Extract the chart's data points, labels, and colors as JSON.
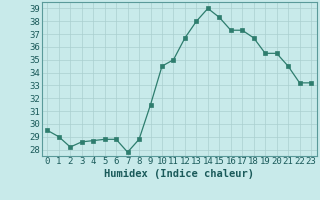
{
  "x": [
    0,
    1,
    2,
    3,
    4,
    5,
    6,
    7,
    8,
    9,
    10,
    11,
    12,
    13,
    14,
    15,
    16,
    17,
    18,
    19,
    20,
    21,
    22,
    23
  ],
  "y": [
    29.5,
    29.0,
    28.2,
    28.6,
    28.7,
    28.8,
    28.8,
    27.8,
    28.8,
    31.5,
    34.5,
    35.0,
    36.7,
    38.0,
    39.0,
    38.3,
    37.3,
    37.3,
    36.7,
    35.5,
    35.5,
    34.5,
    33.2,
    33.2
  ],
  "xlabel": "Humidex (Indice chaleur)",
  "xlim": [
    -0.5,
    23.5
  ],
  "ylim": [
    27.5,
    39.5
  ],
  "yticks": [
    28,
    29,
    30,
    31,
    32,
    33,
    34,
    35,
    36,
    37,
    38,
    39
  ],
  "xticks": [
    0,
    1,
    2,
    3,
    4,
    5,
    6,
    7,
    8,
    9,
    10,
    11,
    12,
    13,
    14,
    15,
    16,
    17,
    18,
    19,
    20,
    21,
    22,
    23
  ],
  "line_color": "#2e7d6e",
  "marker_color": "#2e7d6e",
  "bg_color": "#c8eaea",
  "grid_color": "#aacfcf",
  "tick_fontsize": 6.5,
  "xlabel_fontsize": 7.5
}
